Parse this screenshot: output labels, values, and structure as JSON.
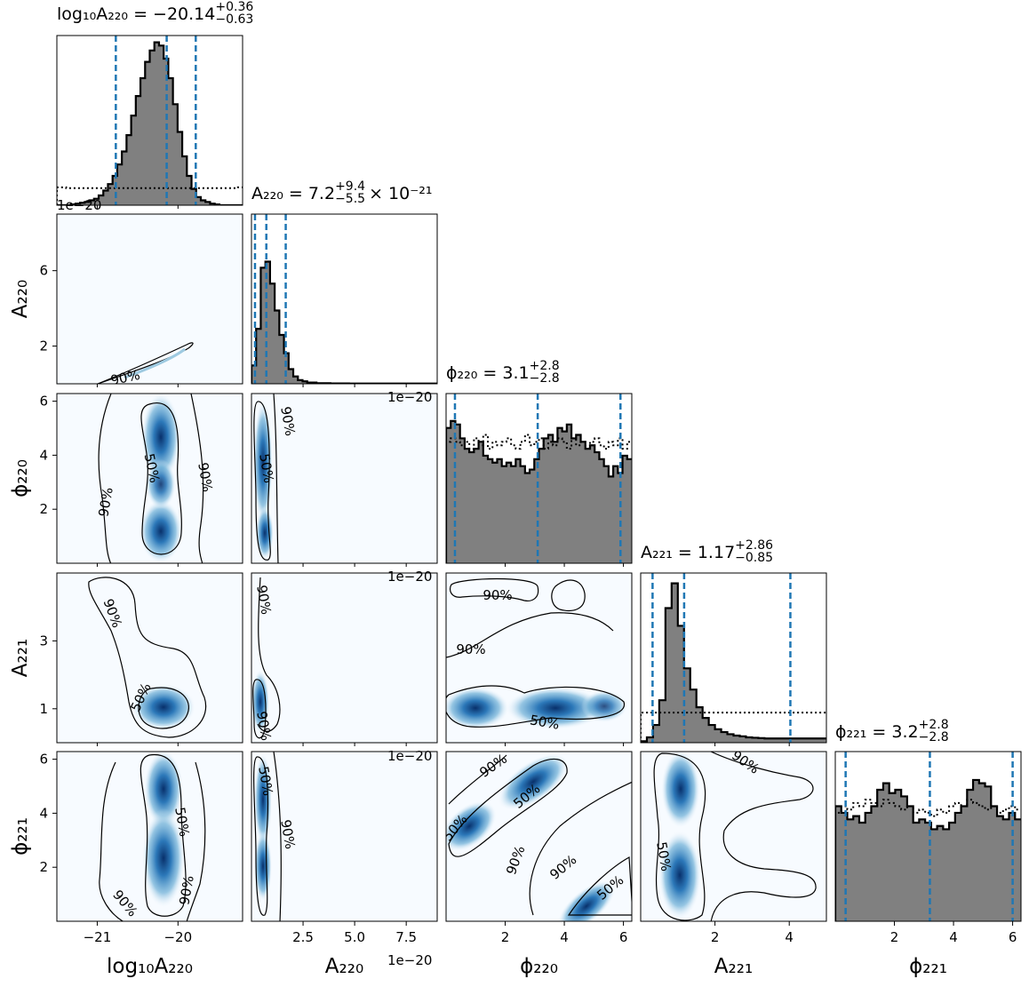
{
  "chart_data": {
    "type": "corner",
    "parameters": [
      {
        "key": "logA220",
        "label": "log₁₀A₂₂₀",
        "title_main": "log₁₀A₂₂₀ = −20.14",
        "title_sup": "+0.36",
        "title_sub": "−0.63",
        "title_tail": "",
        "range": [
          -21.5,
          -19.2
        ],
        "quantiles": [
          -20.77,
          -20.14,
          -19.78
        ]
      },
      {
        "key": "A220",
        "label": "A₂₂₀",
        "title_main": "A₂₂₀ = 7.2",
        "title_sup": "+9.4",
        "title_sub": "−5.5",
        "title_tail": "× 10⁻²¹",
        "range": [
          0,
          9
        ],
        "quantiles": [
          0.17,
          0.72,
          1.66
        ]
      },
      {
        "key": "phi220",
        "label": "ϕ₂₂₀",
        "title_main": "ϕ₂₂₀ = 3.1",
        "title_sup": "+2.8",
        "title_sub": "−2.8",
        "title_tail": "",
        "range": [
          0,
          6.283
        ],
        "quantiles": [
          0.3,
          3.1,
          5.9
        ]
      },
      {
        "key": "A221",
        "label": "A₂₂₁",
        "title_main": "A₂₂₁ = 1.17",
        "title_sup": "+2.86",
        "title_sub": "−0.85",
        "title_tail": "",
        "range": [
          0,
          5
        ],
        "quantiles": [
          0.32,
          1.17,
          4.03
        ]
      },
      {
        "key": "phi221",
        "label": "ϕ₂₂₁",
        "title_main": "ϕ₂₂₁ = 3.2",
        "title_sup": "+2.8",
        "title_sub": "−2.8",
        "title_tail": "",
        "range": [
          0,
          6.283
        ],
        "quantiles": [
          0.35,
          3.2,
          6.0
        ]
      }
    ],
    "x_ticks": [
      [
        {
          "v": -21,
          "t": "−21"
        },
        {
          "v": -20,
          "t": "−20"
        }
      ],
      [
        {
          "v": 2.5,
          "t": "2.5"
        },
        {
          "v": 5,
          "t": "5.0"
        },
        {
          "v": 7.5,
          "t": "7.5"
        }
      ],
      [
        {
          "v": 2,
          "t": "2"
        },
        {
          "v": 4,
          "t": "4"
        },
        {
          "v": 6,
          "t": "6"
        }
      ],
      [
        {
          "v": 2,
          "t": "2"
        },
        {
          "v": 4,
          "t": "4"
        }
      ],
      [
        {
          "v": 2,
          "t": "2"
        },
        {
          "v": 4,
          "t": "4"
        },
        {
          "v": 6,
          "t": "6"
        }
      ]
    ],
    "y_ticks": [
      null,
      [
        {
          "v": 2,
          "t": "2"
        },
        {
          "v": 6,
          "t": "6"
        }
      ],
      [
        {
          "v": 2,
          "t": "2"
        },
        {
          "v": 4,
          "t": "4"
        },
        {
          "v": 6,
          "t": "6"
        }
      ],
      [
        {
          "v": 1,
          "t": "1"
        },
        {
          "v": 3,
          "t": "3"
        }
      ],
      [
        {
          "v": 2,
          "t": "2"
        },
        {
          "v": 4,
          "t": "4"
        },
        {
          "v": 6,
          "t": "6"
        }
      ]
    ],
    "offset_texts": [
      "1e−20",
      "1e−20",
      "1e−20",
      "1e−20",
      "1e−20"
    ],
    "contour_levels": [
      "50%",
      "90%"
    ],
    "histograms": {
      "logA220": {
        "posterior": [
          0,
          0,
          0,
          0.5,
          1,
          1.5,
          2,
          3,
          4,
          6,
          9,
          13,
          18,
          25,
          33,
          43,
          55,
          67,
          78,
          88,
          95,
          100,
          98,
          90,
          78,
          62,
          45,
          30,
          18,
          10,
          5,
          3,
          2,
          1,
          0.5,
          0,
          0,
          0,
          0,
          0
        ],
        "prior": [
          11,
          11,
          10.5,
          10.5,
          10.5,
          10.5,
          10.5,
          10.5,
          10.5,
          10.5,
          10.5,
          10.5,
          10.5,
          10.5,
          10.5,
          10.5,
          10.5,
          10.5,
          10.5,
          10.5,
          10.5,
          10.5,
          10.5,
          10.5,
          10.5,
          10.5,
          10.5,
          10.5,
          10.5,
          10.5,
          10.5,
          10.5,
          10.5,
          10.5,
          10.5,
          10.5,
          10.5,
          10.5,
          10.5,
          11
        ]
      },
      "A220": {
        "posterior": [
          15,
          45,
          95,
          100,
          82,
          60,
          40,
          25,
          12,
          6,
          3,
          2,
          1,
          1,
          0.5,
          0.5,
          0.5,
          0.3,
          0.3,
          0.3,
          0.3,
          0.2,
          0.2,
          0.2,
          0.2,
          0.2,
          0.2,
          0.2,
          0.2,
          0.2,
          0.2,
          0.2,
          0.2,
          0.2,
          0.2,
          0.2,
          0.2,
          0.2,
          0.2,
          0.2
        ],
        "prior": null
      },
      "phi220": {
        "posterior": [
          78,
          82,
          80,
          72,
          66,
          64,
          66,
          70,
          62,
          60,
          58,
          60,
          56,
          58,
          56,
          60,
          56,
          52,
          54,
          60,
          66,
          72,
          74,
          70,
          78,
          76,
          80,
          72,
          74,
          70,
          66,
          68,
          64,
          60,
          56,
          50,
          56,
          52,
          62,
          60
        ],
        "prior": [
          70,
          72,
          70,
          68,
          70,
          66,
          72,
          68,
          74,
          66,
          70,
          68,
          70,
          72,
          68,
          66,
          70,
          74,
          68,
          70,
          72,
          66,
          70,
          68,
          72,
          70,
          66,
          72,
          68,
          70,
          66,
          70,
          72,
          68,
          66,
          70,
          68,
          72,
          66,
          70
        ]
      },
      "phi221": {
        "posterior": [
          70,
          66,
          62,
          64,
          60,
          66,
          70,
          80,
          84,
          78,
          80,
          76,
          70,
          60,
          62,
          60,
          56,
          58,
          56,
          60,
          66,
          70,
          80,
          86,
          84,
          82,
          70,
          64,
          62,
          66,
          62
        ],
        "prior": [
          66,
          70,
          68,
          72,
          70,
          74,
          72,
          70,
          74,
          72,
          70,
          68,
          70,
          66,
          68,
          66,
          64,
          68,
          66,
          70,
          72,
          70,
          74,
          72,
          70,
          68,
          70,
          66,
          68,
          70,
          68
        ]
      },
      "A221": {
        "posterior": [
          4,
          15,
          50,
          120,
          380,
          450,
          330,
          210,
          150,
          100,
          70,
          50,
          38,
          30,
          24,
          20,
          18,
          15,
          14,
          13,
          12,
          12,
          12,
          12,
          12,
          12,
          12,
          12,
          12,
          12
        ],
        "prior": [
          85,
          85,
          85,
          85,
          85,
          85,
          85,
          85,
          85,
          85,
          85,
          85,
          85,
          85,
          85,
          85,
          85,
          85,
          85,
          85,
          85,
          85,
          85,
          85,
          85,
          85,
          85,
          85,
          85,
          85
        ]
      }
    },
    "colors": {
      "hist_fill": "#808080",
      "quantile_line": "#1f77b4",
      "density_high": "#08306b",
      "density_low": "#f7fbff",
      "contour": "#000000"
    }
  }
}
